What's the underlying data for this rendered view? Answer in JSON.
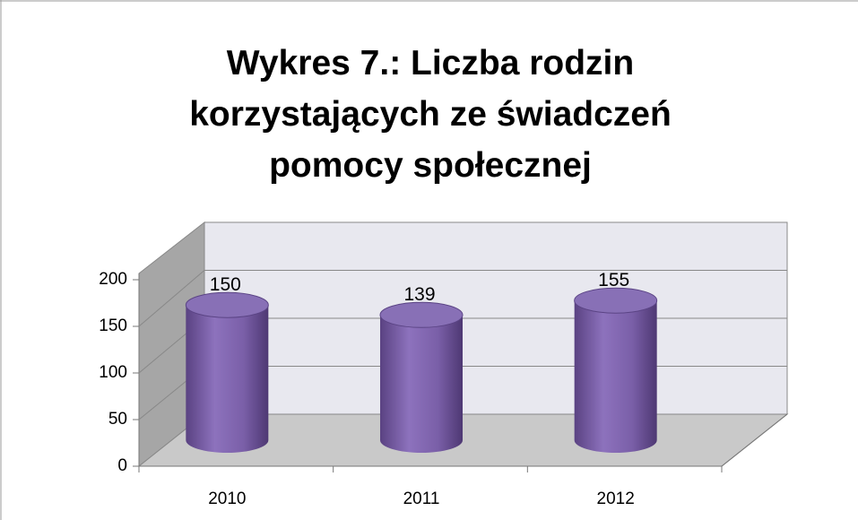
{
  "chart_data": {
    "type": "bar3d",
    "title": "Wykres 7.: Liczba rodzin korzystających ze świadczeń pomocy społecznej",
    "categories": [
      "2010",
      "2011",
      "2012"
    ],
    "values": [
      150,
      139,
      155
    ],
    "color": "#7b60a8",
    "ylim": [
      0,
      200
    ],
    "yticks": [
      0,
      50,
      100,
      150,
      200
    ],
    "grid": true
  }
}
